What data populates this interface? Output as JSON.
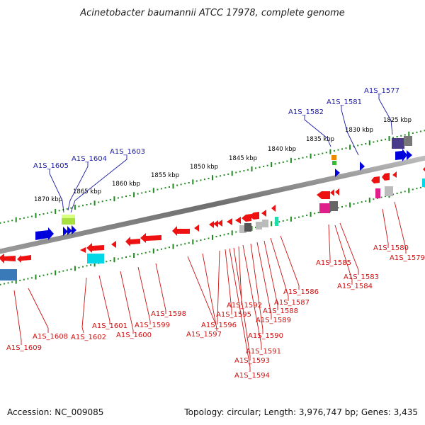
{
  "title": "Acinetobacter baumannii ATCC 17978, complete genome",
  "accession": "Accession: NC_009085",
  "summary": "Topology: circular; Length: 3,976,747 bp; Genes: 3,435",
  "tick_labels": [
    "1825 kbp",
    "1830 kbp",
    "1835 kbp",
    "1840 kbp",
    "1845 kbp",
    "1850 kbp",
    "1855 kbp",
    "1860 kbp",
    "1865 kbp",
    "1870 kbp"
  ],
  "labels_top": [
    "A1S_1577",
    "A1S_1581",
    "A1S_1582",
    "A1S_1603",
    "A1S_1604",
    "A1S_1605"
  ],
  "labels_bottom": [
    "A1S_1579",
    "A1S_1580",
    "A1S_1583",
    "A1S_1584",
    "A1S_1585",
    "A1S_1586",
    "A1S_1587",
    "A1S_1588",
    "A1S_1589",
    "A1S_1590",
    "A1S_1591",
    "A1S_1592",
    "A1S_1593",
    "A1S_1594",
    "A1S_1595",
    "A1S_1596",
    "A1S_1597",
    "A1S_1598",
    "A1S_1599",
    "A1S_1600",
    "A1S_1601",
    "A1S_1602",
    "A1S_1608",
    "A1S_1609"
  ],
  "colors": {
    "forward_gene": "#0000dd",
    "reverse_gene": "#ee1111",
    "backbone": "#777777",
    "tick_dots": "#1f8a1f",
    "label_top": "#1a1aa6",
    "label_bottom": "#cc1010"
  }
}
